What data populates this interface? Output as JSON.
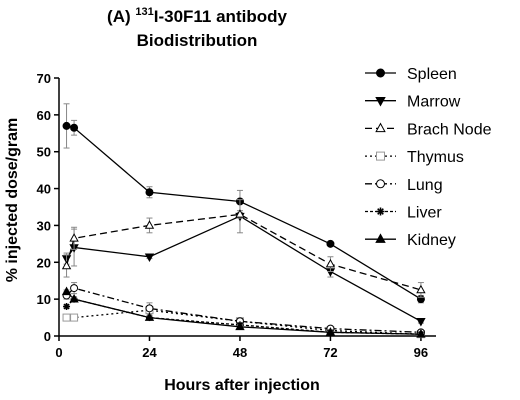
{
  "chart_data": {
    "type": "line",
    "title_prefix": "(A) ",
    "title_superscript": "131",
    "title_suffix": "I-30F11 antibody",
    "subtitle": "Biodistribution",
    "xlabel": "Hours after injection",
    "ylabel": "% injected dose/gram",
    "xlim": [
      0,
      100
    ],
    "ylim": [
      0,
      70
    ],
    "x_ticks": [
      0,
      24,
      48,
      72,
      96
    ],
    "y_ticks": [
      0,
      10,
      20,
      30,
      40,
      50,
      60,
      70
    ],
    "legend_position": "right",
    "series": [
      {
        "name": "Spleen",
        "line": "solid",
        "marker": "circle",
        "fill": "filled",
        "x": [
          2,
          4,
          24,
          48,
          72,
          96
        ],
        "y": [
          57,
          56.5,
          39,
          36.5,
          25,
          10
        ],
        "err": [
          6,
          2,
          1.5,
          3,
          0.5,
          1
        ]
      },
      {
        "name": "Marrow",
        "line": "solid",
        "marker": "triangle-down",
        "fill": "filled",
        "x": [
          2,
          4,
          24,
          48,
          72,
          96
        ],
        "y": [
          21,
          24,
          21.5,
          32.5,
          17.5,
          4
        ],
        "err": [
          1.5,
          5,
          0.5,
          4.5,
          1.5,
          0.5
        ]
      },
      {
        "name": "Brach Node",
        "line": "dash",
        "marker": "triangle-up",
        "fill": "open",
        "x": [
          2,
          4,
          24,
          48,
          72,
          96
        ],
        "y": [
          19,
          26.5,
          30,
          33,
          19.5,
          12.5
        ],
        "err": [
          3,
          3,
          2,
          1,
          2,
          2
        ]
      },
      {
        "name": "Thymus",
        "line": "dot",
        "marker": "square",
        "fill": "open",
        "x": [
          2,
          4,
          24,
          48,
          72,
          96
        ],
        "y": [
          5,
          5,
          7,
          4,
          1.5,
          0.5
        ],
        "err": [
          0.5,
          0.5,
          0.5,
          0.5,
          0.3,
          0.2
        ]
      },
      {
        "name": "Lung",
        "line": "dashdot",
        "marker": "circle",
        "fill": "open",
        "x": [
          2,
          4,
          24,
          48,
          72,
          96
        ],
        "y": [
          11,
          13,
          7.5,
          4,
          2,
          1
        ],
        "err": [
          1,
          1.5,
          1.5,
          0.8,
          0.4,
          0.2
        ]
      },
      {
        "name": "Liver",
        "line": "densedot",
        "marker": "star",
        "fill": "filled",
        "x": [
          2,
          4,
          24,
          48,
          72,
          96
        ],
        "y": [
          8,
          10,
          5,
          3,
          1,
          0.5
        ],
        "err": [
          0.5,
          0.5,
          0.5,
          0.5,
          0.3,
          0.2
        ]
      },
      {
        "name": "Kidney",
        "line": "solid",
        "marker": "triangle-up",
        "fill": "filled",
        "x": [
          2,
          4,
          24,
          48,
          72,
          96
        ],
        "y": [
          12,
          10,
          5,
          2.5,
          1,
          0.5
        ],
        "err": [
          0.5,
          0.5,
          0.5,
          0.5,
          0.3,
          0.2
        ]
      }
    ]
  }
}
